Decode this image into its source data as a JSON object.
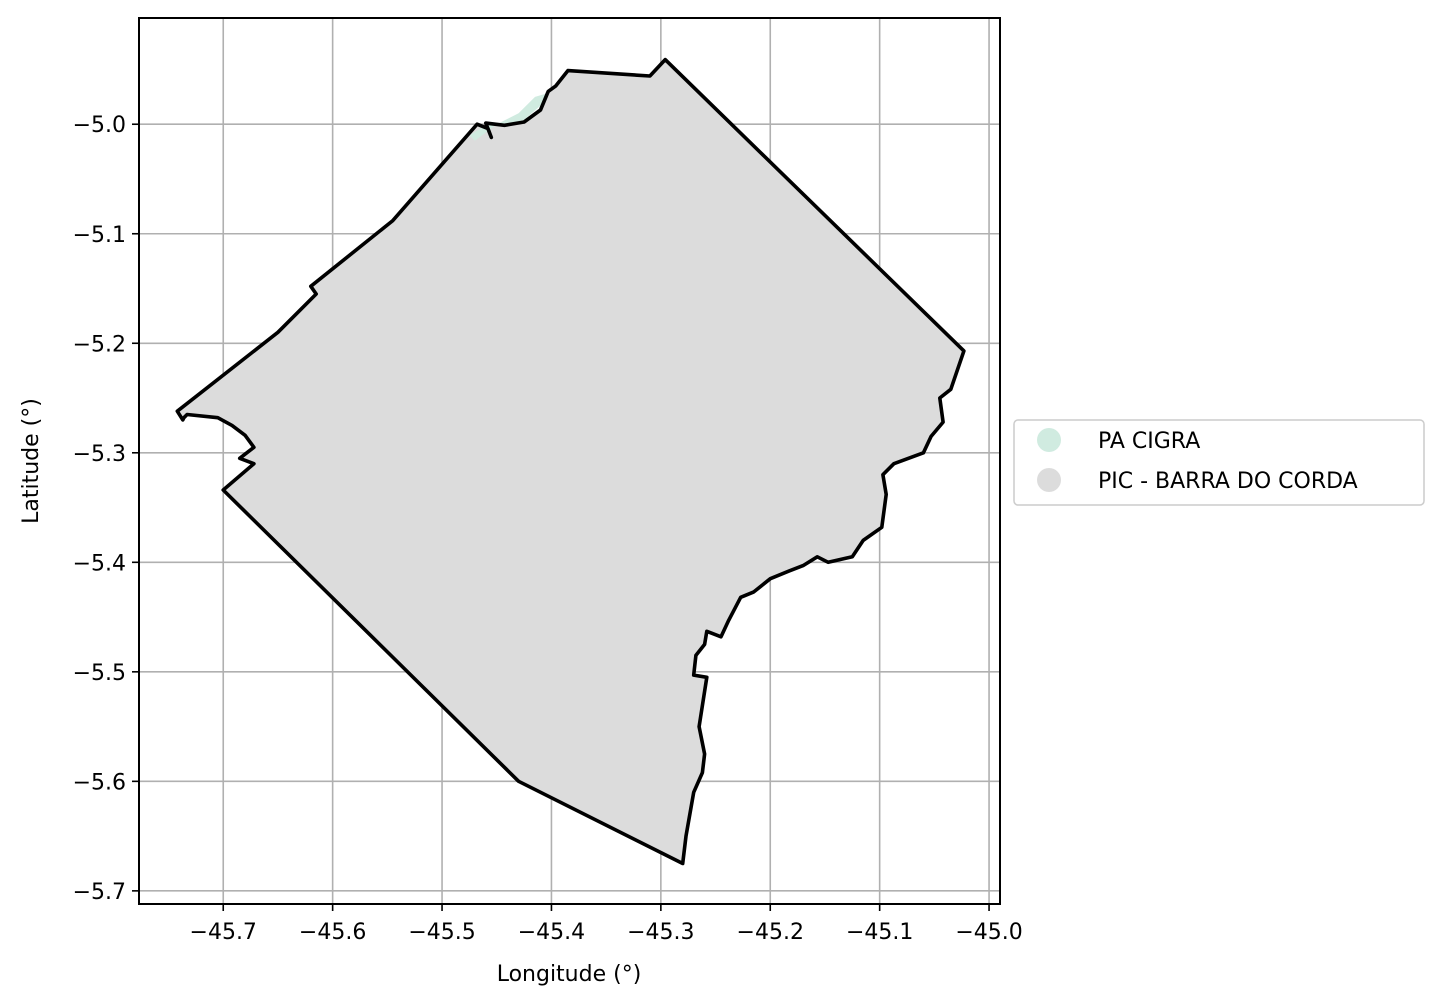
{
  "chart_data": {
    "type": "map",
    "xlabel": "Longitude (°)",
    "ylabel": "Latitude (°)",
    "xlim": [
      -45.777,
      -44.99
    ],
    "ylim": [
      -5.712,
      -4.903
    ],
    "grid": true,
    "x_ticks": [
      -45.7,
      -45.6,
      -45.5,
      -45.4,
      -45.3,
      -45.2,
      -45.1,
      -45.0
    ],
    "x_tick_labels": [
      "−45.7",
      "−45.6",
      "−45.5",
      "−45.4",
      "−45.3",
      "−45.2",
      "−45.1",
      "−45.0"
    ],
    "y_ticks": [
      -5.0,
      -5.1,
      -5.2,
      -5.3,
      -5.4,
      -5.5,
      -5.6,
      -5.7
    ],
    "y_tick_labels": [
      "−5.0",
      "−5.1",
      "−5.2",
      "−5.3",
      "−5.4",
      "−5.5",
      "−5.6",
      "−5.7"
    ],
    "legend_position": "right",
    "legend": [
      {
        "name": "PA CIGRA",
        "color": "#d0ebe0"
      },
      {
        "name": "PIC - BARRA DO CORDA",
        "color": "#dcdcdc"
      }
    ],
    "regions": [
      {
        "name": "PA CIGRA",
        "color": "#d0ebe0",
        "coords": [
          [
            -45.475,
            -5.01
          ],
          [
            -45.455,
            -4.998
          ],
          [
            -45.44,
            -5.0
          ],
          [
            -45.425,
            -4.996
          ],
          [
            -45.41,
            -4.983
          ],
          [
            -45.405,
            -4.972
          ],
          [
            -45.415,
            -4.975
          ],
          [
            -45.43,
            -4.99
          ],
          [
            -45.45,
            -5.0
          ],
          [
            -45.47,
            -5.015
          ]
        ]
      },
      {
        "name": "PIC - BARRA DO CORDA",
        "color": "#dcdcdc",
        "boundary_color": "#000000",
        "coords": [
          [
            -45.742,
            -5.262
          ],
          [
            -45.65,
            -5.19
          ],
          [
            -45.615,
            -5.155
          ],
          [
            -45.62,
            -5.148
          ],
          [
            -45.545,
            -5.088
          ],
          [
            -45.468,
            -5.0
          ],
          [
            -45.458,
            -5.004
          ],
          [
            -45.455,
            -5.012
          ],
          [
            -45.46,
            -4.999
          ],
          [
            -45.443,
            -5.001
          ],
          [
            -45.425,
            -4.998
          ],
          [
            -45.41,
            -4.987
          ],
          [
            -45.403,
            -4.97
          ],
          [
            -45.396,
            -4.965
          ],
          [
            -45.385,
            -4.951
          ],
          [
            -45.31,
            -4.956
          ],
          [
            -45.296,
            -4.941
          ],
          [
            -45.023,
            -5.207
          ],
          [
            -45.035,
            -5.242
          ],
          [
            -45.045,
            -5.25
          ],
          [
            -45.042,
            -5.272
          ],
          [
            -45.053,
            -5.285
          ],
          [
            -45.06,
            -5.3
          ],
          [
            -45.087,
            -5.31
          ],
          [
            -45.097,
            -5.32
          ],
          [
            -45.094,
            -5.338
          ],
          [
            -45.098,
            -5.368
          ],
          [
            -45.115,
            -5.38
          ],
          [
            -45.125,
            -5.395
          ],
          [
            -45.147,
            -5.4
          ],
          [
            -45.157,
            -5.395
          ],
          [
            -45.17,
            -5.403
          ],
          [
            -45.183,
            -5.408
          ],
          [
            -45.2,
            -5.415
          ],
          [
            -45.215,
            -5.427
          ],
          [
            -45.227,
            -5.432
          ],
          [
            -45.238,
            -5.453
          ],
          [
            -45.245,
            -5.468
          ],
          [
            -45.258,
            -5.463
          ],
          [
            -45.26,
            -5.475
          ],
          [
            -45.268,
            -5.485
          ],
          [
            -45.27,
            -5.503
          ],
          [
            -45.258,
            -5.505
          ],
          [
            -45.265,
            -5.55
          ],
          [
            -45.26,
            -5.575
          ],
          [
            -45.262,
            -5.592
          ],
          [
            -45.27,
            -5.61
          ],
          [
            -45.277,
            -5.65
          ],
          [
            -45.28,
            -5.675
          ],
          [
            -45.43,
            -5.6
          ],
          [
            -45.7,
            -5.334
          ],
          [
            -45.672,
            -5.31
          ],
          [
            -45.685,
            -5.305
          ],
          [
            -45.672,
            -5.295
          ],
          [
            -45.68,
            -5.284
          ],
          [
            -45.692,
            -5.275
          ],
          [
            -45.705,
            -5.268
          ],
          [
            -45.733,
            -5.265
          ],
          [
            -45.736,
            -5.268
          ],
          [
            -45.737,
            -5.27
          ]
        ]
      }
    ]
  }
}
